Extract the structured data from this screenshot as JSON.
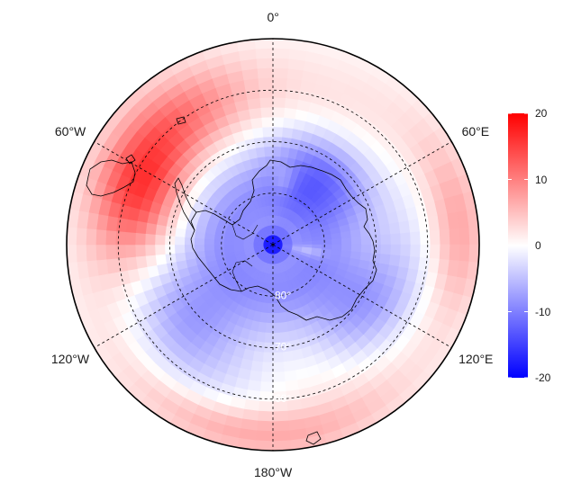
{
  "map": {
    "projection": "south-polar-stereographic",
    "colors": {
      "low": "#0000ff",
      "mid": "#ffffff",
      "high": "#ff0000",
      "outline": "#000000",
      "grid": "#000000"
    },
    "longitude_labels": [
      {
        "id": "lon-0",
        "text": "0°",
        "angle_deg": 0
      },
      {
        "id": "lon-60e",
        "text": "60°E",
        "angle_deg": 60
      },
      {
        "id": "lon-120e",
        "text": "120°E",
        "angle_deg": 120
      },
      {
        "id": "lon-180w",
        "text": "180°W",
        "angle_deg": 180
      },
      {
        "id": "lon-120w",
        "text": "120°W",
        "angle_deg": 240
      },
      {
        "id": "lon-60w",
        "text": "60°W",
        "angle_deg": 300
      }
    ],
    "latitude_labels": [
      {
        "id": "lat-80",
        "text": "80°"
      },
      {
        "id": "lat-70",
        "text": "70°"
      },
      {
        "id": "lat-60",
        "text": "60°"
      }
    ],
    "latitude_circles": [
      -80,
      -70,
      -60
    ],
    "outer_latitude": -50
  },
  "colorbar": {
    "min": -20,
    "max": 20,
    "ticks": [
      {
        "value": 20,
        "label": "20"
      },
      {
        "value": 10,
        "label": "10"
      },
      {
        "value": 0,
        "label": "0"
      },
      {
        "value": -10,
        "label": "-10"
      },
      {
        "value": -20,
        "label": "-20"
      }
    ]
  }
}
